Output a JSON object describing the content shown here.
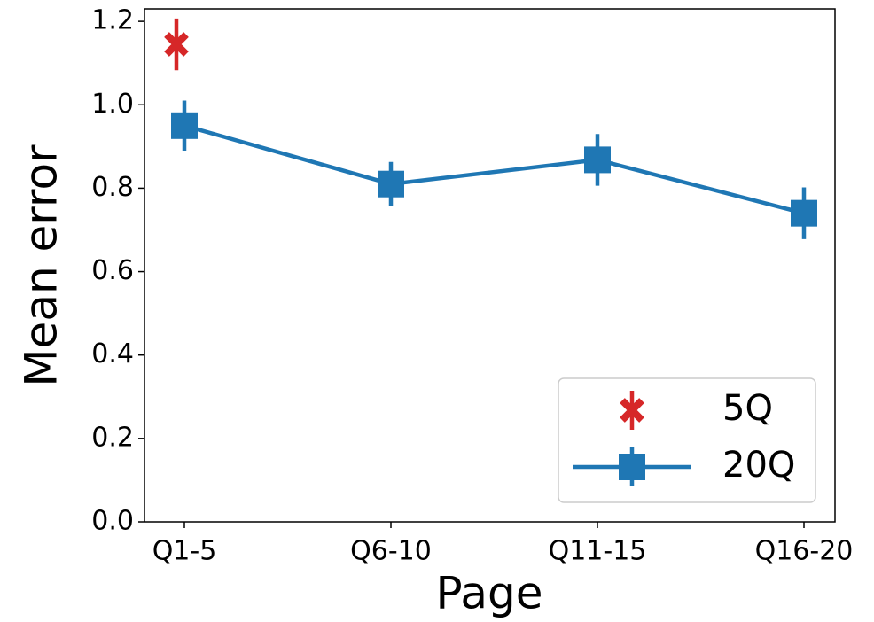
{
  "chart_data": {
    "type": "line",
    "x_label": "Page",
    "y_label": "Mean error",
    "categories": [
      "Q1-5",
      "Q6-10",
      "Q11-15",
      "Q16-20"
    ],
    "series": [
      {
        "name": "5Q",
        "color": "#d62728",
        "marker": "x",
        "line": false,
        "values": [
          1.145,
          null,
          null,
          null
        ],
        "errors": [
          0.062,
          null,
          null,
          null
        ]
      },
      {
        "name": "20Q",
        "color": "#1f77b4",
        "marker": "square",
        "line": true,
        "values": [
          0.95,
          0.81,
          0.868,
          0.74
        ],
        "errors": [
          0.06,
          0.053,
          0.062,
          0.062
        ]
      }
    ],
    "ylim": [
      0,
      1.23
    ],
    "yticks": [
      {
        "value": 0,
        "label": "0.0"
      },
      0.2,
      0.4,
      0.6,
      0.8,
      {
        "value": 1,
        "label": "1.0"
      },
      1.2
    ],
    "legend": "lower right",
    "grid": false
  }
}
